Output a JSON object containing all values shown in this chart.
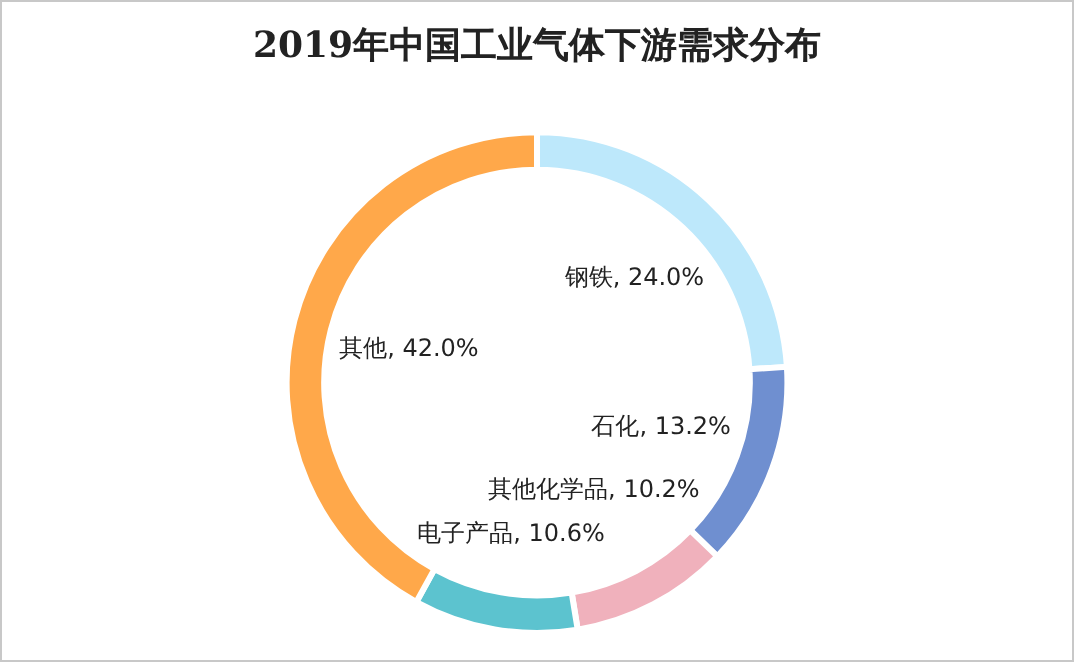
{
  "chart_data": {
    "type": "donut",
    "title": "2019年中国工业气体下游需求分布",
    "categories": [
      "钢铁",
      "石化",
      "其他化学品",
      "电子产品",
      "其他"
    ],
    "values": [
      24.0,
      13.2,
      10.2,
      10.6,
      42.0
    ],
    "colors": [
      "#bde8fb",
      "#6f8fd0",
      "#f0b1bc",
      "#5cc3cf",
      "#ffa84a"
    ],
    "value_labels": [
      "24.0%",
      "13.2%",
      "10.2%",
      "10.6%",
      "42.0%"
    ],
    "legend": false
  }
}
